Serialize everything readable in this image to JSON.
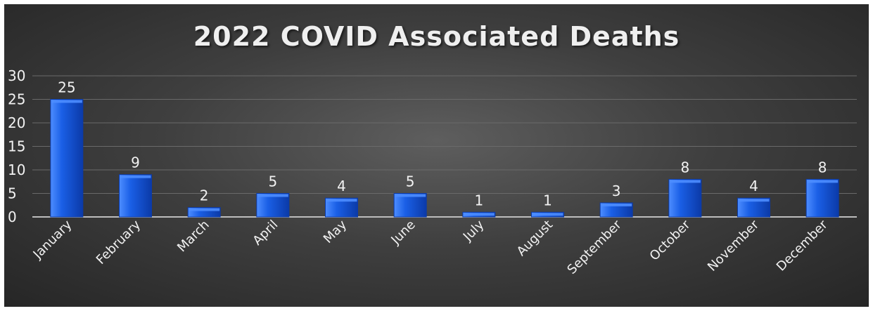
{
  "chart_data": {
    "type": "bar",
    "title": "2022 COVID Associated Deaths",
    "xlabel": "",
    "ylabel": "",
    "categories": [
      "January",
      "February",
      "March",
      "April",
      "May",
      "June",
      "July",
      "August",
      "September",
      "October",
      "November",
      "December"
    ],
    "values": [
      25,
      9,
      2,
      5,
      4,
      5,
      1,
      1,
      3,
      8,
      4,
      8
    ],
    "ylim": [
      0,
      30
    ],
    "yticks": [
      0,
      5,
      10,
      15,
      20,
      25,
      30
    ],
    "grid": true,
    "legend": "none",
    "data_labels": true,
    "colors": {
      "bar": "#1a5fe6",
      "bar_light": "#4d8dff",
      "bar_dark": "#0b3aa8",
      "background": "#3f3f3f",
      "gridline": "#6a6a6a",
      "text": "#f2f2f2"
    }
  }
}
